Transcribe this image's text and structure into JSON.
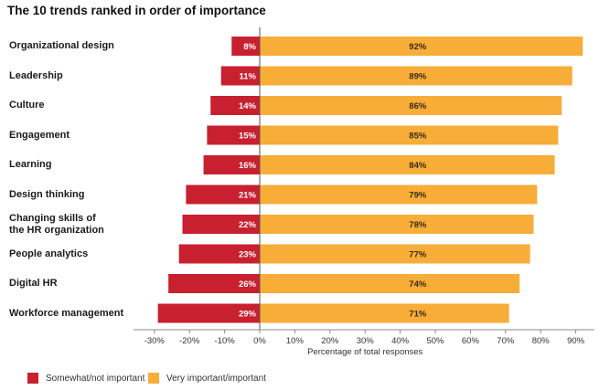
{
  "chart_data": {
    "type": "bar",
    "orientation": "horizontal-diverging",
    "title": "The 10 trends ranked in order of importance",
    "categories": [
      "Organizational design",
      "Leadership",
      "Culture",
      "Engagement",
      "Learning",
      "Design thinking",
      "Changing skills of the HR organization",
      "People analytics",
      "Digital HR",
      "Workforce management"
    ],
    "category_display": [
      [
        "Organizational design"
      ],
      [
        "Leadership"
      ],
      [
        "Culture"
      ],
      [
        "Engagement"
      ],
      [
        "Learning"
      ],
      [
        "Design thinking"
      ],
      [
        "Changing skills of",
        "the HR organization"
      ],
      [
        "People analytics"
      ],
      [
        "Digital HR"
      ],
      [
        "Workforce management"
      ]
    ],
    "series": [
      {
        "name": "Somewhat/not important",
        "color": "#c8202f",
        "values": [
          8,
          11,
          14,
          15,
          16,
          21,
          22,
          23,
          26,
          29
        ],
        "labels": [
          "8%",
          "11%",
          "14%",
          "15%",
          "16%",
          "21%",
          "22%",
          "23%",
          "26%",
          "29%"
        ]
      },
      {
        "name": "Very important/important",
        "color": "#f7ad38",
        "values": [
          92,
          89,
          86,
          85,
          84,
          79,
          78,
          77,
          74,
          71
        ],
        "labels": [
          "92%",
          "89%",
          "86%",
          "85%",
          "84%",
          "79%",
          "78%",
          "77%",
          "74%",
          "71%"
        ]
      }
    ],
    "xlabel": "Percentage of total responses",
    "xlim": [
      -30,
      90
    ],
    "xticks": [
      -30,
      -20,
      -10,
      0,
      10,
      20,
      30,
      40,
      50,
      60,
      70,
      80,
      90
    ],
    "xtick_labels": [
      "-30%",
      "-20%",
      "-10%",
      "0%",
      "10%",
      "20%",
      "30%",
      "40%",
      "50%",
      "60%",
      "70%",
      "80%",
      "90%"
    ],
    "grid": false,
    "legend_position": "bottom-left"
  }
}
